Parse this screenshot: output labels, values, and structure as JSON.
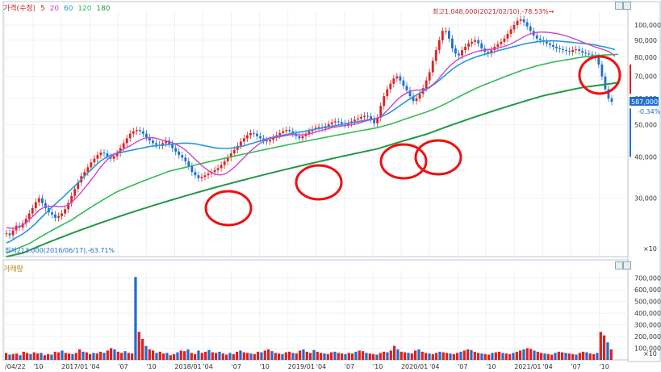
{
  "legend": {
    "title": "가격(수정)",
    "items": [
      {
        "label": "5",
        "color": "#cc2222"
      },
      {
        "label": "20",
        "color": "#cc44cc"
      },
      {
        "label": "60",
        "color": "#2299dd"
      },
      {
        "label": "120",
        "color": "#33bb55"
      },
      {
        "label": "180",
        "color": "#229944"
      }
    ]
  },
  "annotations": {
    "high": "최고1,048,000(2021/02/10),-78.53%→",
    "low": "최저213,000(2016/06/17),-63.71%",
    "current_price": "587,000",
    "current_change": "-0.34%"
  },
  "volume_title": "거래량",
  "colors": {
    "up": "#e02020",
    "down": "#1e6fd0",
    "ma5": "#cc2222",
    "ma20": "#cc44cc",
    "ma60": "#2299dd",
    "ma120": "#33bb55",
    "ma180": "#229944",
    "circle": "#ee1111"
  },
  "chart_data": [
    {
      "type": "candlestick",
      "title": "",
      "yunit": "×10",
      "ylim": [
        200000,
        1100000
      ],
      "y_ticks": [
        "100,000",
        "90,000",
        "80,000",
        "70,000",
        "60,000",
        "50,000",
        "40,000",
        "30,000"
      ],
      "x_ticks": [
        "/04/22",
        "'10",
        "2017/01",
        "'04",
        "'07",
        "'10",
        "2018/01",
        "'04",
        "'07",
        "'10",
        "2019/01",
        "'04",
        "'07",
        "'10",
        "2020/01",
        "'04",
        "'07",
        "'10",
        "2021/01",
        "'04",
        "'07",
        "'10"
      ],
      "close_series": [
        235,
        232,
        240,
        248,
        245,
        252,
        260,
        270,
        280,
        292,
        300,
        290,
        280,
        272,
        268,
        262,
        265,
        270,
        278,
        290,
        305,
        320,
        335,
        350,
        360,
        372,
        385,
        395,
        405,
        412,
        410,
        400,
        395,
        402,
        410,
        425,
        440,
        455,
        470,
        478,
        482,
        478,
        470,
        458,
        448,
        440,
        435,
        432,
        440,
        448,
        438,
        425,
        415,
        405,
        398,
        388,
        375,
        360,
        352,
        345,
        348,
        352,
        356,
        360,
        365,
        370,
        378,
        388,
        398,
        410,
        420,
        432,
        445,
        455,
        465,
        472,
        470,
        462,
        455,
        448,
        445,
        450,
        458,
        465,
        472,
        478,
        482,
        478,
        470,
        462,
        455,
        462,
        470,
        478,
        485,
        490,
        492,
        488,
        495,
        502,
        508,
        512,
        510,
        505,
        500,
        505,
        512,
        518,
        522,
        528,
        532,
        530,
        520,
        505,
        525,
        570,
        610,
        640,
        665,
        690,
        700,
        680,
        655,
        635,
        610,
        590,
        600,
        620,
        645,
        680,
        720,
        780,
        840,
        900,
        960,
        960,
        910,
        850,
        820,
        810,
        840,
        860,
        880,
        890,
        900,
        880,
        850,
        830,
        820,
        840,
        860,
        875,
        890,
        910,
        940,
        970,
        1000,
        1030,
        1040,
        1020,
        990,
        960,
        930,
        910,
        900,
        890,
        880,
        870,
        860,
        850,
        845,
        840,
        835,
        830,
        840,
        845,
        835,
        825,
        820,
        815,
        810,
        800,
        760,
        700,
        640,
        600,
        587
      ],
      "ma20": [
        245,
        244,
        243,
        244,
        246,
        249,
        253,
        258,
        264,
        270,
        276,
        280,
        282,
        283,
        284,
        284,
        283,
        283,
        284,
        287,
        292,
        298,
        305,
        313,
        322,
        331,
        341,
        351,
        362,
        373,
        383,
        392,
        400,
        406,
        412,
        417,
        422,
        427,
        432,
        438,
        444,
        449,
        454,
        456,
        457,
        457,
        455,
        452,
        449,
        447,
        444,
        441,
        437,
        432,
        426,
        419,
        411,
        402,
        393,
        385,
        377,
        370,
        364,
        359,
        355,
        353,
        353,
        355,
        359,
        365,
        372,
        380,
        389,
        398,
        407,
        416,
        425,
        433,
        440,
        446,
        451,
        454,
        456,
        458,
        460,
        462,
        464,
        466,
        467,
        467,
        466,
        466,
        467,
        469,
        472,
        475,
        478,
        481,
        484,
        487,
        490,
        492,
        494,
        496,
        497,
        498,
        500,
        502,
        505,
        508,
        512,
        515,
        518,
        520,
        523,
        530,
        540,
        552,
        566,
        580,
        594,
        606,
        616,
        624,
        630,
        634,
        636,
        637,
        639,
        643,
        650,
        661,
        675,
        692,
        711,
        730,
        748,
        764,
        778,
        790,
        800,
        808,
        815,
        822,
        829,
        834,
        838,
        841,
        843,
        845,
        848,
        852,
        857,
        862,
        869,
        877,
        887,
        898,
        910,
        922,
        932,
        940,
        946,
        950,
        952,
        952,
        951,
        949,
        946,
        943,
        938,
        933,
        927,
        920,
        912,
        905,
        897,
        888,
        880,
        872,
        865,
        858,
        852,
        846,
        840,
        832,
        820,
        805
      ],
      "ma60": [
        220,
        222,
        225,
        228,
        231,
        234,
        238,
        242,
        247,
        252,
        258,
        264,
        270,
        276,
        282,
        288,
        294,
        300,
        306,
        313,
        320,
        327,
        334,
        342,
        350,
        358,
        366,
        374,
        382,
        389,
        395,
        400,
        404,
        407,
        410,
        412,
        414,
        416,
        418,
        420,
        422,
        424,
        426,
        428,
        430,
        431,
        432,
        433,
        434,
        435,
        436,
        437,
        438,
        439,
        440,
        440,
        440,
        439,
        438,
        436,
        434,
        432,
        430,
        428,
        426,
        425,
        424,
        424,
        424,
        425,
        426,
        428,
        430,
        432,
        435,
        438,
        441,
        444,
        447,
        450,
        453,
        456,
        459,
        461,
        463,
        465,
        467,
        469,
        471,
        473,
        475,
        477,
        479,
        481,
        483,
        485,
        487,
        489,
        491,
        493,
        495,
        497,
        499,
        501,
        503,
        505,
        507,
        509,
        511,
        513,
        515,
        517,
        519,
        521,
        524,
        528,
        533,
        539,
        546,
        554,
        563,
        572,
        581,
        590,
        599,
        607,
        615,
        623,
        631,
        639,
        648,
        658,
        669,
        681,
        694,
        708,
        722,
        735,
        747,
        758,
        768,
        777,
        785,
        792,
        799,
        805,
        811,
        816,
        821,
        826,
        831,
        836,
        841,
        846,
        851,
        856,
        861,
        866,
        871,
        876,
        880,
        884,
        887,
        890,
        892,
        894,
        895,
        896,
        896,
        895,
        894,
        892,
        890,
        888,
        886,
        884,
        882,
        880,
        878,
        876,
        873,
        870,
        866,
        862,
        858,
        853,
        848,
        843
      ],
      "ma120": [
        205,
        207,
        209,
        211,
        213,
        215,
        217,
        219,
        222,
        225,
        228,
        231,
        234,
        237,
        240,
        243,
        246,
        249,
        252,
        255,
        258,
        262,
        266,
        270,
        274,
        278,
        282,
        286,
        290,
        294,
        298,
        302,
        306,
        310,
        314,
        317,
        320,
        323,
        326,
        329,
        332,
        335,
        338,
        341,
        344,
        347,
        350,
        353,
        356,
        359,
        362,
        364,
        366,
        368,
        370,
        372,
        374,
        376,
        378,
        380,
        382,
        384,
        386,
        388,
        390,
        392,
        394,
        396,
        398,
        400,
        402,
        404,
        406,
        408,
        410,
        412,
        414,
        416,
        418,
        420,
        422,
        424,
        426,
        428,
        430,
        432,
        434,
        436,
        438,
        440,
        442,
        444,
        446,
        448,
        450,
        452,
        454,
        456,
        458,
        460,
        462,
        464,
        466,
        468,
        470,
        472,
        474,
        476,
        478,
        480,
        482,
        484,
        486,
        488,
        490,
        493,
        496,
        499,
        502,
        506,
        510,
        514,
        518,
        522,
        526,
        530,
        534,
        538,
        542,
        546,
        551,
        556,
        561,
        567,
        573,
        579,
        586,
        593,
        600,
        607,
        614,
        621,
        628,
        635,
        642,
        649,
        655,
        661,
        667,
        673,
        679,
        685,
        691,
        697,
        703,
        709,
        715,
        721,
        727,
        733,
        738,
        743,
        748,
        753,
        757,
        761,
        765,
        769,
        773,
        776,
        779,
        782,
        785,
        788,
        791,
        794,
        797,
        800,
        802,
        804,
        806,
        808,
        810,
        811,
        812,
        813,
        814,
        815,
        816
      ],
      "ma180": [
        200,
        201,
        202,
        203,
        204,
        205,
        207,
        209,
        211,
        213,
        215,
        217,
        219,
        221,
        223,
        225,
        227,
        229,
        231,
        233,
        235,
        237,
        239,
        241,
        243,
        245,
        247,
        249,
        251,
        253,
        255,
        257,
        259,
        261,
        263,
        265,
        267,
        269,
        271,
        273,
        275,
        277,
        279,
        281,
        283,
        285,
        287,
        289,
        291,
        293,
        295,
        297,
        299,
        301,
        303,
        305,
        307,
        309,
        311,
        313,
        315,
        317,
        319,
        321,
        323,
        325,
        327,
        329,
        331,
        333,
        335,
        337,
        339,
        341,
        343,
        345,
        347,
        349,
        351,
        353,
        355,
        357,
        359,
        361,
        363,
        365,
        367,
        369,
        371,
        373,
        375,
        377,
        379,
        381,
        383,
        385,
        387,
        389,
        391,
        393,
        395,
        397,
        399,
        401,
        403,
        405,
        407,
        409,
        411,
        413,
        415,
        417,
        419,
        421,
        423,
        426,
        429,
        432,
        435,
        438,
        441,
        444,
        447,
        450,
        453,
        456,
        459,
        462,
        465,
        468,
        472,
        476,
        480,
        484,
        488,
        492,
        496,
        500,
        504,
        508,
        512,
        516,
        520,
        524,
        528,
        532,
        536,
        540,
        544,
        548,
        552,
        556,
        560,
        564,
        568,
        572,
        576,
        580,
        584,
        588,
        592,
        596,
        600,
        604,
        608,
        612,
        615,
        618,
        621,
        624,
        627,
        630,
        633,
        636,
        639,
        642,
        645,
        648,
        650,
        652,
        654,
        656,
        658,
        660,
        662,
        664,
        666,
        668,
        670
      ],
      "volume_ticks": [
        "700,000",
        "600,000",
        "500,000",
        "400,000",
        "300,000",
        "200,000",
        "100,000"
      ],
      "volume": [
        60,
        45,
        50,
        55,
        40,
        70,
        60,
        50,
        65,
        55,
        60,
        40,
        50,
        45,
        70,
        65,
        80,
        60,
        55,
        50,
        60,
        90,
        70,
        65,
        50,
        60,
        55,
        70,
        60,
        80,
        100,
        90,
        70,
        60,
        75,
        60,
        55,
        710,
        240,
        180,
        120,
        90,
        80,
        60,
        70,
        55,
        60,
        40,
        50,
        65,
        80,
        75,
        90,
        60,
        50,
        80,
        60,
        70,
        85,
        65,
        60,
        70,
        55,
        45,
        60,
        50,
        70,
        80,
        65,
        60,
        55,
        50,
        70,
        65,
        80,
        90,
        75,
        60,
        55,
        50,
        65,
        70,
        60,
        55,
        80,
        90,
        70,
        60,
        85,
        70,
        60,
        55,
        50,
        65,
        70,
        60,
        55,
        50,
        60,
        55,
        70,
        80,
        75,
        60,
        55,
        50,
        45,
        60,
        70,
        65,
        80,
        120,
        90,
        70,
        65,
        60,
        55,
        80,
        90,
        70,
        60,
        55,
        50,
        60,
        70,
        65,
        60,
        55,
        50,
        60,
        70,
        80,
        90,
        85,
        70,
        60,
        55,
        50,
        45,
        60,
        65,
        70,
        60,
        55,
        50,
        60,
        70,
        80,
        90,
        100,
        95,
        80,
        70,
        60,
        55,
        50,
        45,
        60,
        70,
        65,
        60,
        55,
        50,
        45,
        60,
        70,
        65,
        55,
        50,
        60,
        240,
        210,
        150,
        90
      ]
    }
  ]
}
